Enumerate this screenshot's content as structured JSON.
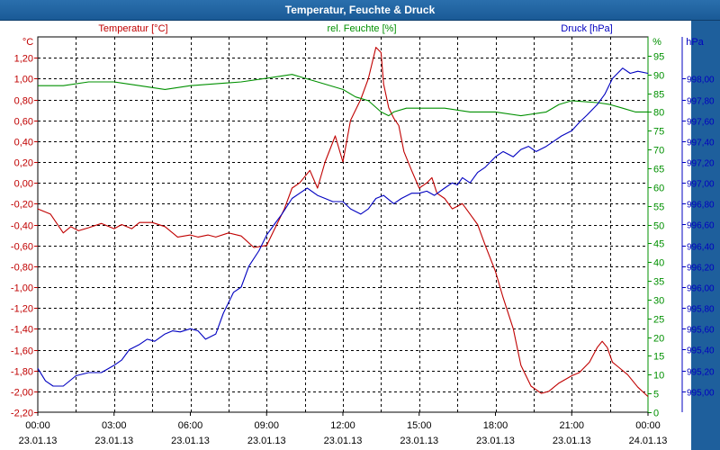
{
  "window": {
    "title": "Temperatur, Feuchte & Druck"
  },
  "colors": {
    "temperature": "#c00000",
    "humidity": "#009000",
    "pressure": "#0000c0",
    "titlebar": "#1a5a96",
    "grid": "#000000"
  },
  "chart_data": {
    "type": "line",
    "title": "Temperatur, Feuchte & Druck",
    "x": [
      "00:00",
      "03:00",
      "06:00",
      "09:00",
      "12:00",
      "15:00",
      "18:00",
      "21:00",
      "00:00"
    ],
    "x_dates": [
      "23.01.13",
      "23.01.13",
      "23.01.13",
      "23.01.13",
      "23.01.13",
      "23.01.13",
      "23.01.13",
      "23.01.13",
      "24.01.13"
    ],
    "xlim_hours": [
      0,
      24
    ],
    "axes": {
      "temperature": {
        "label": "Temperatur [°C]",
        "unit": "°C",
        "ylim": [
          -2.2,
          1.4
        ],
        "ticks": [
          "-2,20",
          "-2,00",
          "-1,80",
          "-1,60",
          "-1,40",
          "-1,20",
          "-1,00",
          "-0,80",
          "-0,60",
          "-0,40",
          "-0,20",
          "0,00",
          "0,20",
          "0,40",
          "0,60",
          "0,80",
          "1,00",
          "1,20"
        ]
      },
      "humidity": {
        "label": "rel. Feuchte [%]",
        "unit": "%",
        "ylim": [
          0,
          100
        ],
        "ticks": [
          "0",
          "5",
          "10",
          "15",
          "20",
          "25",
          "30",
          "35",
          "40",
          "45",
          "50",
          "55",
          "60",
          "65",
          "70",
          "75",
          "80",
          "85",
          "90",
          "95"
        ]
      },
      "pressure": {
        "label": "Druck [hPa]",
        "unit": "hPa",
        "ylim": [
          994.8,
          998.4
        ],
        "ticks": [
          "995,00",
          "995,20",
          "995,40",
          "995,60",
          "995,80",
          "996,00",
          "996,20",
          "996,40",
          "996,60",
          "996,80",
          "997,00",
          "997,20",
          "997,40",
          "997,60",
          "997,80",
          "998,00"
        ]
      }
    },
    "series": [
      {
        "name": "Temperatur",
        "axis": "temperature",
        "color": "#c00000",
        "x": [
          0,
          0.5,
          1,
          1.3,
          1.6,
          2,
          2.5,
          3,
          3.3,
          3.7,
          4,
          4.5,
          5,
          5.5,
          6,
          6.3,
          6.7,
          7,
          7.5,
          8,
          8.5,
          9,
          9.3,
          9.7,
          10,
          10.3,
          10.7,
          11,
          11.3,
          11.7,
          12,
          12.3,
          12.7,
          13,
          13.3,
          13.5,
          13.6,
          13.8,
          14.0,
          14.2,
          14.4,
          14.7,
          15,
          15.3,
          15.5,
          15.7,
          16,
          16.3,
          16.7,
          17,
          17.3,
          17.6,
          18,
          18.3,
          18.7,
          19,
          19.4,
          19.8,
          20.1,
          20.5,
          21,
          21.3,
          21.7,
          22,
          22.2,
          22.4,
          22.6,
          22.8,
          23.2,
          23.6,
          24
        ],
        "values": [
          -0.25,
          -0.3,
          -0.48,
          -0.42,
          -0.46,
          -0.43,
          -0.39,
          -0.44,
          -0.4,
          -0.44,
          -0.38,
          -0.38,
          -0.42,
          -0.52,
          -0.5,
          -0.52,
          -0.5,
          -0.52,
          -0.48,
          -0.51,
          -0.62,
          -0.6,
          -0.45,
          -0.25,
          -0.05,
          0.0,
          0.12,
          -0.05,
          0.2,
          0.45,
          0.2,
          0.6,
          0.8,
          1.0,
          1.3,
          1.25,
          0.95,
          0.72,
          0.62,
          0.55,
          0.3,
          0.12,
          -0.05,
          0.0,
          0.05,
          -0.1,
          -0.15,
          -0.25,
          -0.2,
          -0.3,
          -0.4,
          -0.6,
          -0.85,
          -1.1,
          -1.4,
          -1.75,
          -1.95,
          -2.02,
          -2.0,
          -1.92,
          -1.85,
          -1.82,
          -1.72,
          -1.58,
          -1.52,
          -1.58,
          -1.72,
          -1.76,
          -1.84,
          -1.96,
          -2.05
        ]
      },
      {
        "name": "rel. Feuchte",
        "axis": "humidity",
        "color": "#009000",
        "x": [
          0,
          1,
          2,
          3,
          4,
          5,
          6,
          7,
          8,
          9,
          10,
          10.5,
          11,
          12,
          12.5,
          13,
          13.5,
          13.8,
          14,
          14.5,
          15,
          16,
          17,
          18,
          19,
          20,
          20.5,
          21,
          22,
          22.5,
          23,
          23.5,
          24
        ],
        "values": [
          87,
          87,
          88,
          88,
          87,
          86,
          87,
          87.5,
          88,
          89,
          90,
          89,
          88,
          86,
          84,
          83,
          80,
          79,
          80,
          81,
          81,
          81,
          80,
          80,
          79,
          80,
          82,
          83,
          82.5,
          82,
          81,
          80,
          80
        ]
      },
      {
        "name": "Druck",
        "axis": "pressure",
        "color": "#0000c0",
        "x": [
          0,
          0.3,
          0.6,
          1,
          1.5,
          2,
          2.5,
          3,
          3.3,
          3.6,
          4,
          4.3,
          4.6,
          5,
          5.3,
          5.6,
          6,
          6.3,
          6.6,
          7,
          7.3,
          7.7,
          8,
          8.3,
          8.7,
          9,
          9.3,
          9.6,
          10,
          10.3,
          10.6,
          11,
          11.3,
          11.6,
          12,
          12.3,
          12.7,
          13,
          13.3,
          13.6,
          14,
          14.3,
          14.7,
          15,
          15.3,
          15.6,
          16,
          16.3,
          16.5,
          16.7,
          17,
          17.3,
          17.6,
          18,
          18.3,
          18.7,
          19,
          19.3,
          19.6,
          20,
          20.3,
          20.6,
          21,
          21.3,
          21.6,
          22,
          22.3,
          22.6,
          23,
          23.3,
          23.6,
          24
        ],
        "values": [
          995.22,
          995.1,
          995.05,
          995.05,
          995.15,
          995.18,
          995.18,
          995.25,
          995.3,
          995.4,
          995.45,
          995.5,
          995.48,
          995.55,
          995.58,
          995.57,
          995.6,
          995.58,
          995.5,
          995.55,
          995.75,
          995.95,
          996.0,
          996.2,
          996.35,
          996.5,
          996.6,
          996.7,
          996.85,
          996.9,
          996.95,
          996.88,
          996.85,
          996.82,
          996.82,
          996.75,
          996.7,
          996.75,
          996.85,
          996.88,
          996.8,
          996.85,
          996.9,
          996.9,
          996.92,
          996.88,
          996.95,
          997.0,
          996.98,
          997.05,
          997.0,
          997.1,
          997.15,
          997.25,
          997.3,
          997.25,
          997.32,
          997.35,
          997.3,
          997.35,
          997.4,
          997.45,
          997.5,
          997.58,
          997.65,
          997.75,
          997.85,
          998.0,
          998.1,
          998.05,
          998.07,
          998.05
        ]
      }
    ]
  }
}
